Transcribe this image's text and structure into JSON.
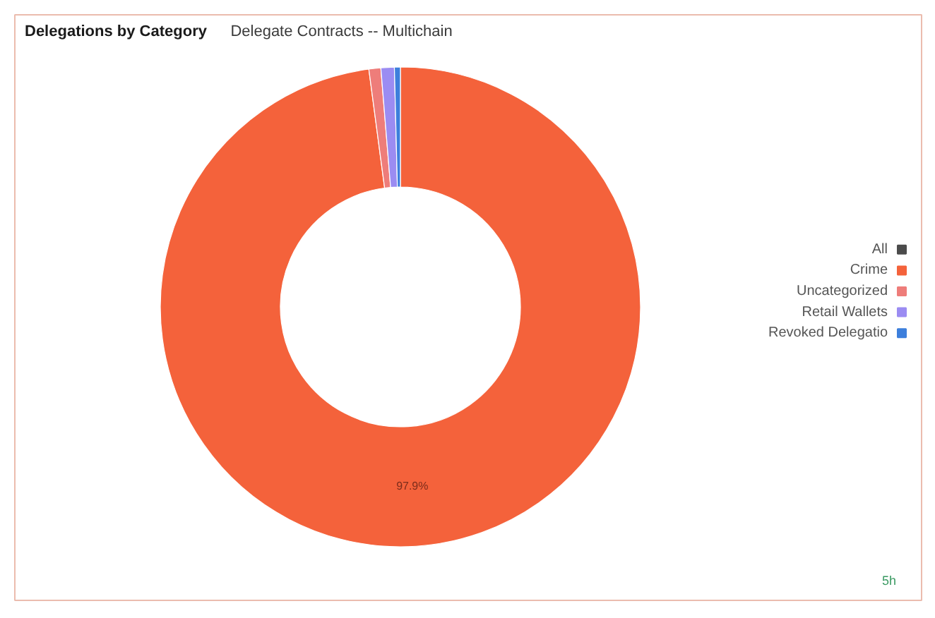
{
  "chart_data": {
    "type": "donut",
    "title": "Delegations by Category",
    "subtitle": "Delegate Contracts -- Multichain",
    "categories": [
      "All",
      "Crime",
      "Uncategorized",
      "Retail Wallets",
      "Revoked Delegatio"
    ],
    "values": [
      0,
      97.9,
      0.8,
      0.9,
      0.4
    ],
    "colors": [
      "#4b4b4b",
      "#f4623b",
      "#ee7d7a",
      "#9b8cf2",
      "#3d7fdc"
    ],
    "value_labels": [
      null,
      "97.9%",
      null,
      null,
      null
    ],
    "legend": "right",
    "annotations": [
      "5h"
    ]
  }
}
